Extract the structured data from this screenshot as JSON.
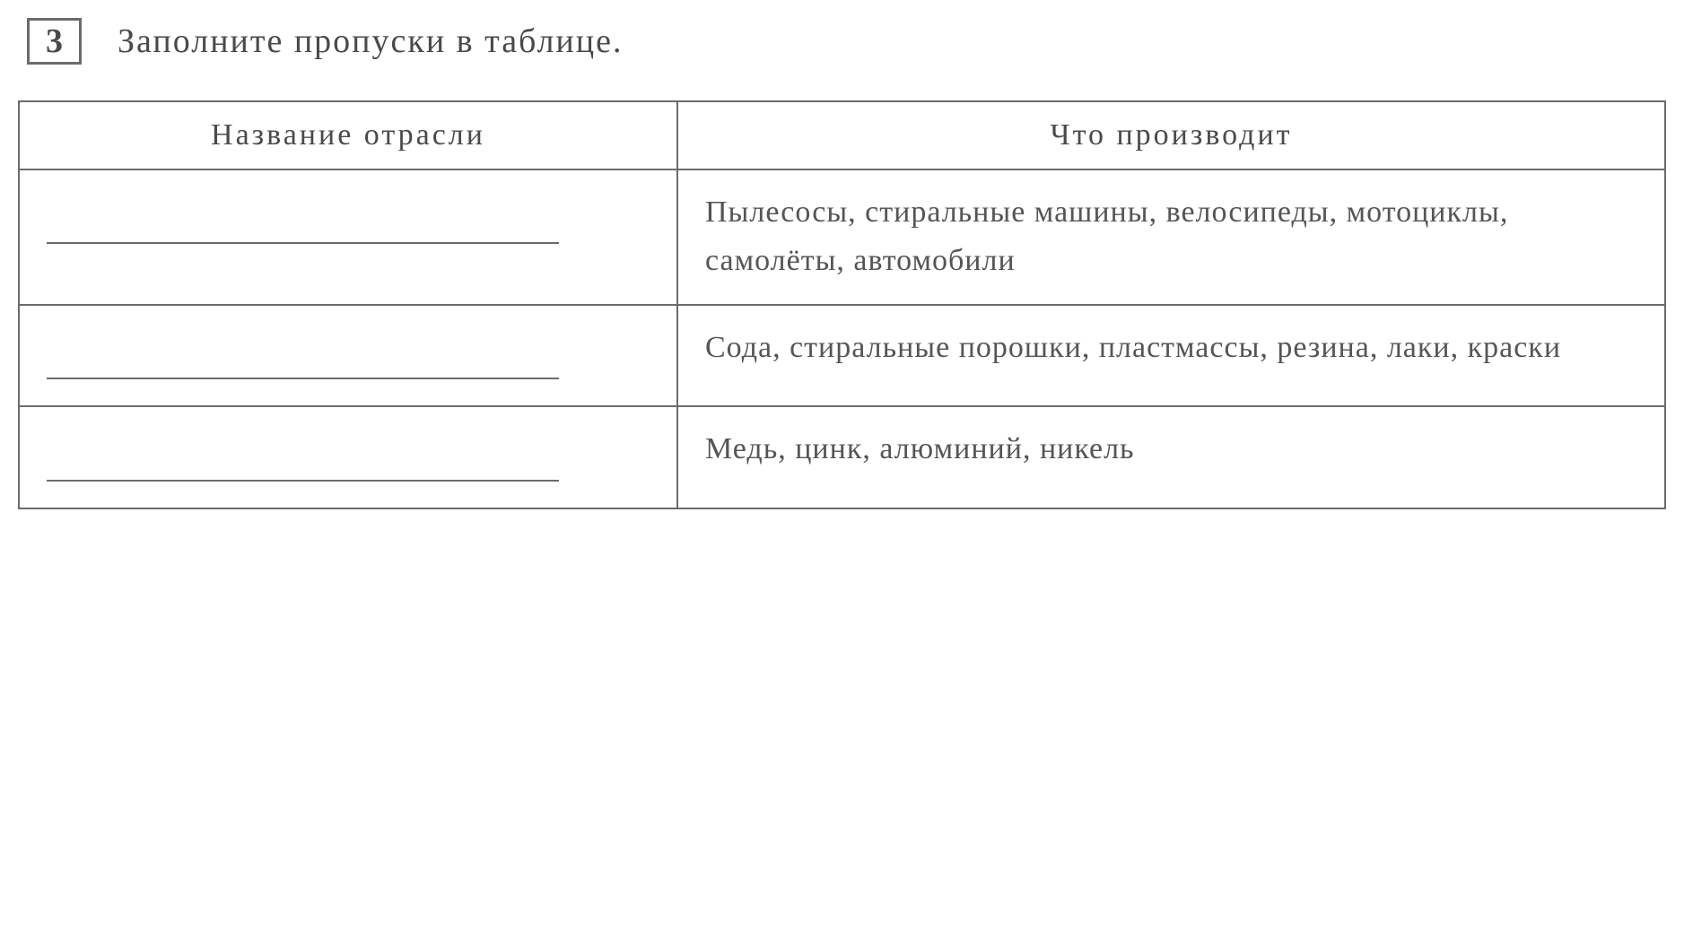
{
  "header": {
    "problem_number": "3",
    "instruction": "Заполните пропуски в таблице."
  },
  "table": {
    "type": "table",
    "columns": [
      {
        "label": "Название отрасли",
        "width_percent": 40,
        "align": "center"
      },
      {
        "label": "Что производит",
        "width_percent": 60,
        "align": "center"
      }
    ],
    "rows": [
      {
        "industry_name": "",
        "products": "Пылесосы, стиральные машины, велосипеды, мотоциклы, самолёты, автомобили"
      },
      {
        "industry_name": "",
        "products": "Сода, стиральные порошки, пластмассы, резина, лаки, краски"
      },
      {
        "industry_name": "",
        "products": "Медь, цинк, алюминий, никель"
      }
    ],
    "border_color": "#6b6b6b",
    "background_color": "#ffffff",
    "text_color": "#555555",
    "header_fontsize": 34,
    "cell_fontsize": 34
  }
}
